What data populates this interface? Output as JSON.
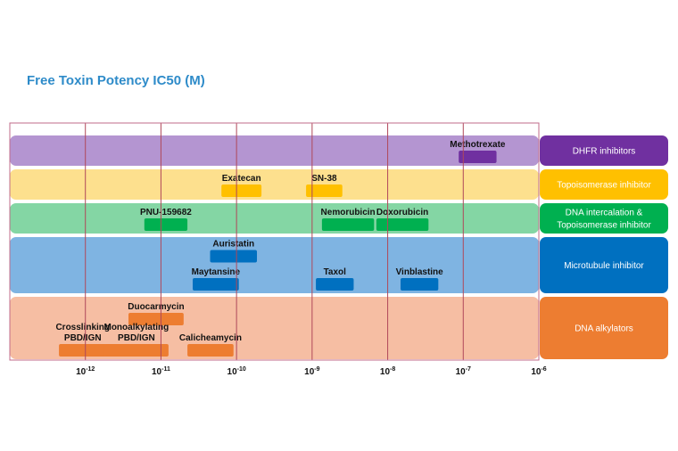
{
  "chart_data": {
    "type": "range-bar",
    "title": "Free Toxin Potency IC50 (M)",
    "x_scale": "log10",
    "xlim": [
      1e-13,
      1e-06
    ],
    "x_ticks": [
      {
        "base": "10",
        "exp": "-12",
        "value": 1e-12
      },
      {
        "base": "10",
        "exp": "-11",
        "value": 1e-11
      },
      {
        "base": "10",
        "exp": "-10",
        "value": 1e-10
      },
      {
        "base": "10",
        "exp": "-9",
        "value": 1e-09
      },
      {
        "base": "10",
        "exp": "-8",
        "value": 1e-08
      },
      {
        "base": "10",
        "exp": "-7",
        "value": 1e-07
      },
      {
        "base": "10",
        "exp": "-6",
        "value": 1e-06
      }
    ],
    "categories": [
      {
        "name": "DHFR inhibitors",
        "name_lines": [
          "DHFR inhibitors"
        ],
        "band_color": "#b495d1",
        "label_color": "#7030a0",
        "bar_color": "#7030a0",
        "slots": 1,
        "items": [
          {
            "lines": [
              "Methotrexate"
            ],
            "low_exp": -7.06,
            "high_exp": -6.56,
            "slot": 0
          }
        ]
      },
      {
        "name": "Topoisomerase inhibitor",
        "name_lines": [
          "Topoisomerase inhibitor"
        ],
        "band_color": "#fde08e",
        "label_color": "#ffc000",
        "bar_color": "#ffc000",
        "slots": 1,
        "items": [
          {
            "lines": [
              "Exatecan"
            ],
            "low_exp": -10.2,
            "high_exp": -9.67,
            "slot": 0
          },
          {
            "lines": [
              "SN-38"
            ],
            "low_exp": -9.08,
            "high_exp": -8.6,
            "slot": 0
          }
        ]
      },
      {
        "name": "DNA intercalation & Topoisomerase inhibitor",
        "name_lines": [
          "DNA intercalation &",
          "Topoisomerase inhibitor"
        ],
        "band_color": "#84d6a4",
        "label_color": "#00b050",
        "bar_color": "#00b050",
        "slots": 1,
        "items": [
          {
            "lines": [
              "PNU-159682"
            ],
            "low_exp": -11.22,
            "high_exp": -10.65,
            "slot": 0
          },
          {
            "lines": [
              "Nemorubicin"
            ],
            "low_exp": -8.87,
            "high_exp": -8.18,
            "slot": 0
          },
          {
            "lines": [
              "Doxorubicin"
            ],
            "low_exp": -8.15,
            "high_exp": -7.46,
            "slot": 0
          }
        ]
      },
      {
        "name": "Microtubule inhibitor",
        "name_lines": [
          "Microtubule inhibitor"
        ],
        "band_color": "#7fb4e2",
        "label_color": "#0070c0",
        "bar_color": "#0070c0",
        "slots": 2,
        "items": [
          {
            "lines": [
              "Auristatin"
            ],
            "low_exp": -10.35,
            "high_exp": -9.73,
            "slot": 0
          },
          {
            "lines": [
              "Maytansine"
            ],
            "low_exp": -10.58,
            "high_exp": -9.97,
            "slot": 1
          },
          {
            "lines": [
              "Taxol"
            ],
            "low_exp": -8.95,
            "high_exp": -8.45,
            "slot": 1
          },
          {
            "lines": [
              "Vinblastine"
            ],
            "low_exp": -7.83,
            "high_exp": -7.33,
            "slot": 1
          }
        ]
      },
      {
        "name": "DNA alkylators",
        "name_lines": [
          "DNA alkylators"
        ],
        "band_color": "#f6bea3",
        "label_color": "#ed7d31",
        "bar_color": "#ed7d31",
        "slots": 2,
        "items": [
          {
            "lines": [
              "Duocarmycin"
            ],
            "low_exp": -11.43,
            "high_exp": -10.7,
            "slot": 0
          },
          {
            "lines": [
              "Crosslinking",
              "PBD/IGN"
            ],
            "low_exp": -12.35,
            "high_exp": -11.72,
            "slot": 1
          },
          {
            "lines": [
              "Monoalkylating",
              "PBD/IGN"
            ],
            "low_exp": -11.75,
            "high_exp": -10.9,
            "slot": 1
          },
          {
            "lines": [
              "Calicheamycin"
            ],
            "low_exp": -10.65,
            "high_exp": -10.04,
            "slot": 1
          }
        ]
      }
    ]
  }
}
